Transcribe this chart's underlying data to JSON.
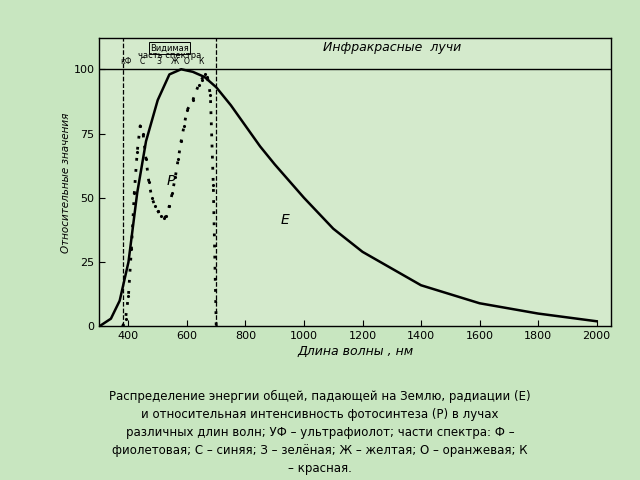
{
  "background_color": "#c8e6c0",
  "plot_bg_color": "#d4eacc",
  "xlabel": "Длина волны , нм",
  "ylabel": "Относительные значения",
  "xlim": [
    300,
    2050
  ],
  "ylim": [
    0,
    112
  ],
  "xticks": [
    400,
    600,
    800,
    1000,
    1200,
    1400,
    1600,
    1800,
    2000
  ],
  "yticks": [
    0,
    25,
    50,
    75,
    100
  ],
  "caption_line1": "Распределение энергии общей, падающей на Землю, радиации (Е)",
  "caption_line2": "и относительная интенсивность фотосинтеза (Р) в лучах",
  "caption_line3": "различных длин волн; УФ – ультрафиолот; части спектра: Ф –",
  "caption_line4": "фиолетовая; С – синяя; З – зелёная; Ж – желтая; О – оранжевая; К",
  "caption_line5": "– красная.",
  "E_label": "E",
  "P_label": "Р",
  "infrared_label": "Инфракрасные  лучи",
  "visible_label_line1": "Видимая",
  "visible_label_line2": "часть спектра",
  "spectrum_labels": [
    "кФ",
    "С",
    "З",
    "Ж",
    "О",
    "К"
  ],
  "spectrum_positions": [
    393,
    448,
    505,
    558,
    600,
    648
  ],
  "visible_start": 380,
  "visible_end": 700,
  "E_x": [
    300,
    340,
    370,
    400,
    430,
    460,
    500,
    540,
    580,
    620,
    660,
    700,
    750,
    800,
    850,
    900,
    1000,
    1100,
    1200,
    1400,
    1600,
    1800,
    2000
  ],
  "E_y": [
    0,
    3,
    10,
    25,
    52,
    72,
    88,
    98,
    100,
    99,
    97,
    93,
    86,
    78,
    70,
    63,
    50,
    38,
    29,
    16,
    9,
    5,
    2
  ],
  "P_x": [
    380,
    390,
    400,
    410,
    420,
    430,
    440,
    450,
    460,
    470,
    480,
    490,
    500,
    510,
    520,
    530,
    540,
    550,
    560,
    570,
    580,
    590,
    600,
    620,
    640,
    650,
    660,
    670,
    680,
    690,
    700
  ],
  "P_y": [
    0,
    3,
    12,
    30,
    52,
    68,
    78,
    75,
    65,
    56,
    50,
    47,
    45,
    43,
    42,
    43,
    47,
    52,
    58,
    65,
    72,
    78,
    84,
    88,
    94,
    96,
    98,
    97,
    90,
    55,
    0
  ]
}
